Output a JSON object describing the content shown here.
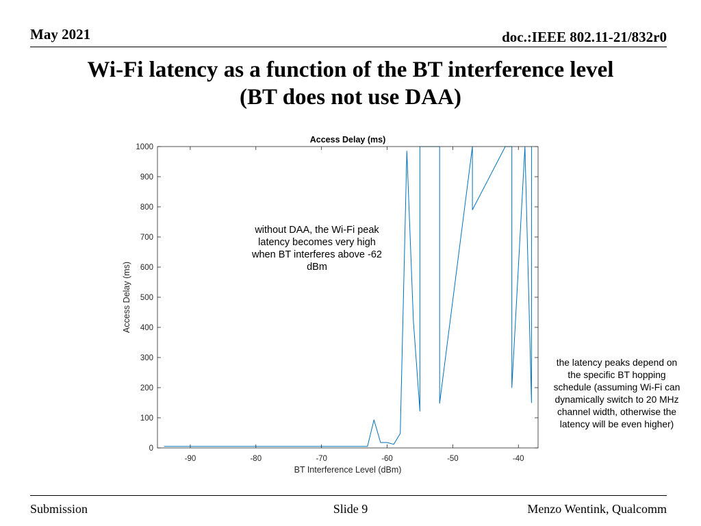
{
  "header": {
    "date": "May 2021",
    "doc": "doc.:IEEE 802.11-21/832r0"
  },
  "slide": {
    "title_line1": "Wi-Fi latency as a function of the BT interference level",
    "title_line2": "(BT does not use DAA)"
  },
  "annotations": {
    "note_daa": "without DAA, the Wi-Fi peak latency becomes very high when BT interferes above -62 dBm",
    "note_hopping": "the latency peaks depend on the specific BT hopping schedule (assuming Wi-Fi can dynamically switch to 20 MHz channel width, otherwise the latency will be even higher)"
  },
  "footer": {
    "left": "Submission",
    "center": "Slide 9",
    "right": "Menzo Wentink, Qualcomm"
  },
  "colors": {
    "series": "#0072bd",
    "axis": "#262626",
    "text": "#000000"
  },
  "chart_data": {
    "type": "line",
    "title": "Access Delay (ms)",
    "xlabel": "BT Interference Level (dBm)",
    "ylabel": "Access Delay (ms)",
    "xlim": [
      -95,
      -37
    ],
    "ylim": [
      0,
      1000
    ],
    "xticks": [
      -90,
      -80,
      -70,
      -60,
      -50,
      -40
    ],
    "xtick_labels": [
      "-90",
      "-80",
      "-70",
      "-60",
      "-50",
      "-40"
    ],
    "yticks": [
      0,
      100,
      200,
      300,
      400,
      500,
      600,
      700,
      800,
      900,
      1000
    ],
    "ytick_labels": [
      "0",
      "100",
      "200",
      "300",
      "400",
      "500",
      "600",
      "700",
      "800",
      "900",
      "1000"
    ],
    "grid": false,
    "series": [
      {
        "x": [
          -94,
          -90,
          -85,
          -80,
          -75,
          -70,
          -65,
          -63,
          -62,
          -61,
          -60,
          -59,
          -58,
          -57,
          -56,
          -55,
          -55,
          -52,
          -52,
          -47,
          -47,
          -42,
          -41,
          -41,
          -39,
          -38,
          -38
        ],
        "y": [
          5,
          5,
          5,
          5,
          5,
          5,
          5,
          5,
          93,
          18,
          18,
          12,
          48,
          985,
          420,
          122,
          1000,
          1000,
          148,
          1000,
          790,
          1000,
          1000,
          200,
          1000,
          150,
          1000
        ]
      }
    ]
  }
}
